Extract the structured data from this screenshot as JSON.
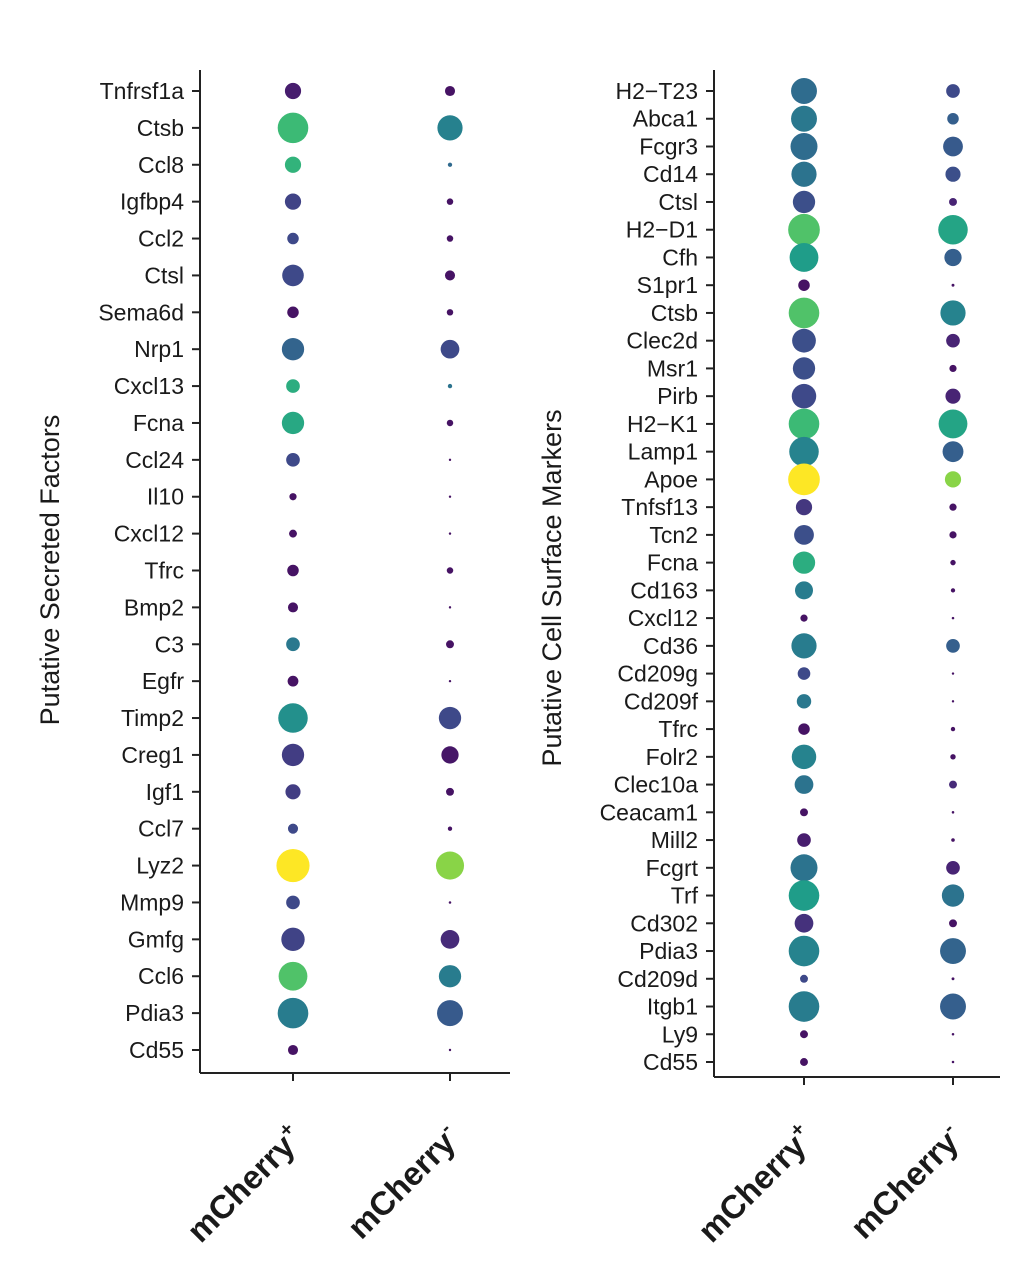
{
  "chart_data": [
    {
      "type": "scatter",
      "ylabel": "Putative Secreted Factors",
      "x": [
        "mCherry",
        "mCherry"
      ],
      "x_superscripts": [
        "+",
        "-"
      ],
      "genes": [
        "Tnfrsf1a",
        "Ctsb",
        "Ccl8",
        "Igfbp4",
        "Ccl2",
        "Ctsl",
        "Sema6d",
        "Nrp1",
        "Cxcl13",
        "Fcna",
        "Ccl24",
        "Il10",
        "Cxcl12",
        "Tfrc",
        "Bmp2",
        "C3",
        "Egfr",
        "Timp2",
        "Creg1",
        "Igf1",
        "Ccl7",
        "Lyz2",
        "Mmp9",
        "Gmfg",
        "Ccl6",
        "Pdia3",
        "Cd55"
      ],
      "size": [
        [
          0.45,
          0.28
        ],
        [
          0.85,
          0.7
        ],
        [
          0.45,
          0.12
        ],
        [
          0.45,
          0.18
        ],
        [
          0.32,
          0.18
        ],
        [
          0.6,
          0.28
        ],
        [
          0.32,
          0.18
        ],
        [
          0.62,
          0.52
        ],
        [
          0.38,
          0.12
        ],
        [
          0.62,
          0.18
        ],
        [
          0.38,
          0.06
        ],
        [
          0.2,
          0.05
        ],
        [
          0.22,
          0.05
        ],
        [
          0.32,
          0.18
        ],
        [
          0.28,
          0.06
        ],
        [
          0.38,
          0.22
        ],
        [
          0.3,
          0.06
        ],
        [
          0.82,
          0.62
        ],
        [
          0.62,
          0.48
        ],
        [
          0.42,
          0.22
        ],
        [
          0.28,
          0.12
        ],
        [
          0.92,
          0.78
        ],
        [
          0.38,
          0.07
        ],
        [
          0.65,
          0.52
        ],
        [
          0.8,
          0.62
        ],
        [
          0.85,
          0.72
        ],
        [
          0.28,
          0.06
        ]
      ],
      "color": [
        [
          0.08,
          0.05
        ],
        [
          0.68,
          0.44
        ],
        [
          0.65,
          0.34
        ],
        [
          0.2,
          0.05
        ],
        [
          0.22,
          0.05
        ],
        [
          0.22,
          0.05
        ],
        [
          0.05,
          0.05
        ],
        [
          0.32,
          0.22
        ],
        [
          0.62,
          0.38
        ],
        [
          0.6,
          0.05
        ],
        [
          0.22,
          0.05
        ],
        [
          0.05,
          0.05
        ],
        [
          0.05,
          0.05
        ],
        [
          0.05,
          0.05
        ],
        [
          0.05,
          0.05
        ],
        [
          0.4,
          0.05
        ],
        [
          0.05,
          0.05
        ],
        [
          0.5,
          0.22
        ],
        [
          0.18,
          0.06
        ],
        [
          0.18,
          0.05
        ],
        [
          0.22,
          0.05
        ],
        [
          1.0,
          0.82
        ],
        [
          0.22,
          0.05
        ],
        [
          0.2,
          0.12
        ],
        [
          0.72,
          0.42
        ],
        [
          0.42,
          0.28
        ],
        [
          0.05,
          0.05
        ]
      ]
    },
    {
      "type": "scatter",
      "ylabel": "Putative Cell Surface Markers",
      "x": [
        "mCherry",
        "mCherry"
      ],
      "x_superscripts": [
        "+",
        "-"
      ],
      "genes": [
        "H2−T23",
        "Abca1",
        "Fcgr3",
        "Cd14",
        "Ctsl",
        "H2−D1",
        "Cfh",
        "S1pr1",
        "Ctsb",
        "Clec2d",
        "Msr1",
        "Pirb",
        "H2−K1",
        "Lamp1",
        "Apoe",
        "Tnfsf13",
        "Tcn2",
        "Fcna",
        "Cd163",
        "Cxcl12",
        "Cd36",
        "Cd209g",
        "Cd209f",
        "Tfrc",
        "Folr2",
        "Clec10a",
        "Ceacam1",
        "Mill2",
        "Fcgrt",
        "Trf",
        "Cd302",
        "Pdia3",
        "Cd209d",
        "Itgb1",
        "Ly9",
        "Cd55"
      ],
      "size": [
        [
          0.72,
          0.38
        ],
        [
          0.72,
          0.32
        ],
        [
          0.75,
          0.55
        ],
        [
          0.7,
          0.42
        ],
        [
          0.62,
          0.22
        ],
        [
          0.88,
          0.82
        ],
        [
          0.8,
          0.48
        ],
        [
          0.32,
          0.08
        ],
        [
          0.85,
          0.7
        ],
        [
          0.66,
          0.38
        ],
        [
          0.62,
          0.2
        ],
        [
          0.68,
          0.42
        ],
        [
          0.85,
          0.8
        ],
        [
          0.82,
          0.58
        ],
        [
          0.88,
          0.45
        ],
        [
          0.45,
          0.2
        ],
        [
          0.55,
          0.2
        ],
        [
          0.62,
          0.15
        ],
        [
          0.5,
          0.12
        ],
        [
          0.2,
          0.07
        ],
        [
          0.7,
          0.38
        ],
        [
          0.35,
          0.05
        ],
        [
          0.4,
          0.04
        ],
        [
          0.32,
          0.12
        ],
        [
          0.68,
          0.15
        ],
        [
          0.52,
          0.22
        ],
        [
          0.22,
          0.07
        ],
        [
          0.38,
          0.1
        ],
        [
          0.75,
          0.38
        ],
        [
          0.85,
          0.62
        ],
        [
          0.52,
          0.22
        ],
        [
          0.85,
          0.72
        ],
        [
          0.22,
          0.08
        ],
        [
          0.85,
          0.72
        ],
        [
          0.22,
          0.07
        ],
        [
          0.22,
          0.07
        ]
      ],
      "color": [
        [
          0.35,
          0.22
        ],
        [
          0.4,
          0.3
        ],
        [
          0.35,
          0.28
        ],
        [
          0.38,
          0.24
        ],
        [
          0.24,
          0.1
        ],
        [
          0.72,
          0.58
        ],
        [
          0.55,
          0.3
        ],
        [
          0.05,
          0.05
        ],
        [
          0.72,
          0.45
        ],
        [
          0.24,
          0.1
        ],
        [
          0.24,
          0.05
        ],
        [
          0.22,
          0.1
        ],
        [
          0.68,
          0.58
        ],
        [
          0.45,
          0.3
        ],
        [
          1.0,
          0.82
        ],
        [
          0.16,
          0.05
        ],
        [
          0.24,
          0.05
        ],
        [
          0.62,
          0.05
        ],
        [
          0.42,
          0.05
        ],
        [
          0.05,
          0.05
        ],
        [
          0.42,
          0.3
        ],
        [
          0.22,
          0.05
        ],
        [
          0.4,
          0.05
        ],
        [
          0.05,
          0.05
        ],
        [
          0.45,
          0.05
        ],
        [
          0.38,
          0.12
        ],
        [
          0.05,
          0.05
        ],
        [
          0.08,
          0.05
        ],
        [
          0.38,
          0.1
        ],
        [
          0.55,
          0.38
        ],
        [
          0.14,
          0.05
        ],
        [
          0.45,
          0.32
        ],
        [
          0.22,
          0.05
        ],
        [
          0.42,
          0.3
        ],
        [
          0.05,
          0.05
        ],
        [
          0.05,
          0.05
        ]
      ]
    }
  ]
}
